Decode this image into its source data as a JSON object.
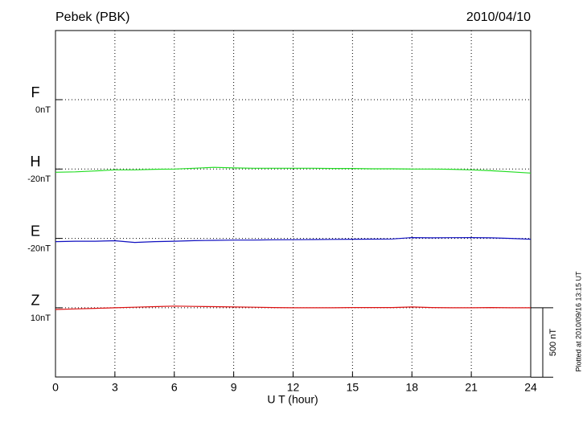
{
  "chart_data": {
    "type": "stacked-line",
    "title": "Pebek (PBK)",
    "date": "2010/04/10",
    "xlabel": "U T (hour)",
    "footnote": "Plotted at 2010/09/16 13:15 UT",
    "x": [
      0,
      1,
      2,
      3,
      4,
      5,
      6,
      7,
      8,
      9,
      10,
      11,
      12,
      13,
      14,
      15,
      16,
      17,
      18,
      19,
      20,
      21,
      22,
      23,
      24
    ],
    "xlim": [
      0,
      24
    ],
    "xticks": [
      0,
      3,
      6,
      9,
      12,
      15,
      18,
      21,
      24
    ],
    "grid": true,
    "scale_bar": {
      "value": 500,
      "label": "500 nT"
    },
    "series": [
      {
        "name": "F",
        "color": "#f5a000",
        "offset": {
          "value": 0,
          "label": "0nT"
        },
        "values": [
          null,
          null,
          null,
          null,
          null,
          null,
          null,
          null,
          null,
          null,
          null,
          null,
          null,
          null,
          null,
          null,
          null,
          null,
          null,
          null,
          null,
          null,
          null,
          null,
          null
        ]
      },
      {
        "name": "H",
        "color": "#22dd22",
        "offset": {
          "value": -20,
          "label": "-20nT"
        },
        "values": [
          -43,
          -40,
          -34,
          -26,
          -26,
          -22,
          -20,
          -14,
          -8,
          -12,
          -14,
          -14,
          -14,
          -14,
          -16,
          -16,
          -18,
          -18,
          -20,
          -20,
          -22,
          -26,
          -32,
          -40,
          -49
        ]
      },
      {
        "name": "E",
        "color": "#1010c0",
        "offset": {
          "value": -20,
          "label": "-20nT"
        },
        "values": [
          -43,
          -40,
          -40,
          -37,
          -49,
          -43,
          -40,
          -36,
          -34,
          -32,
          -32,
          -30,
          -29,
          -28,
          -27,
          -26,
          -25,
          -24,
          -14,
          -16,
          -15,
          -14,
          -16,
          -20,
          -26
        ]
      },
      {
        "name": "Z",
        "color": "#dd1010",
        "offset": {
          "value": 10,
          "label": "10nT"
        },
        "values": [
          -2,
          2,
          6,
          10,
          14,
          18,
          22,
          20,
          18,
          16,
          14,
          12,
          10,
          10,
          10,
          12,
          12,
          12,
          16,
          12,
          10,
          10,
          12,
          10,
          10
        ]
      }
    ]
  }
}
